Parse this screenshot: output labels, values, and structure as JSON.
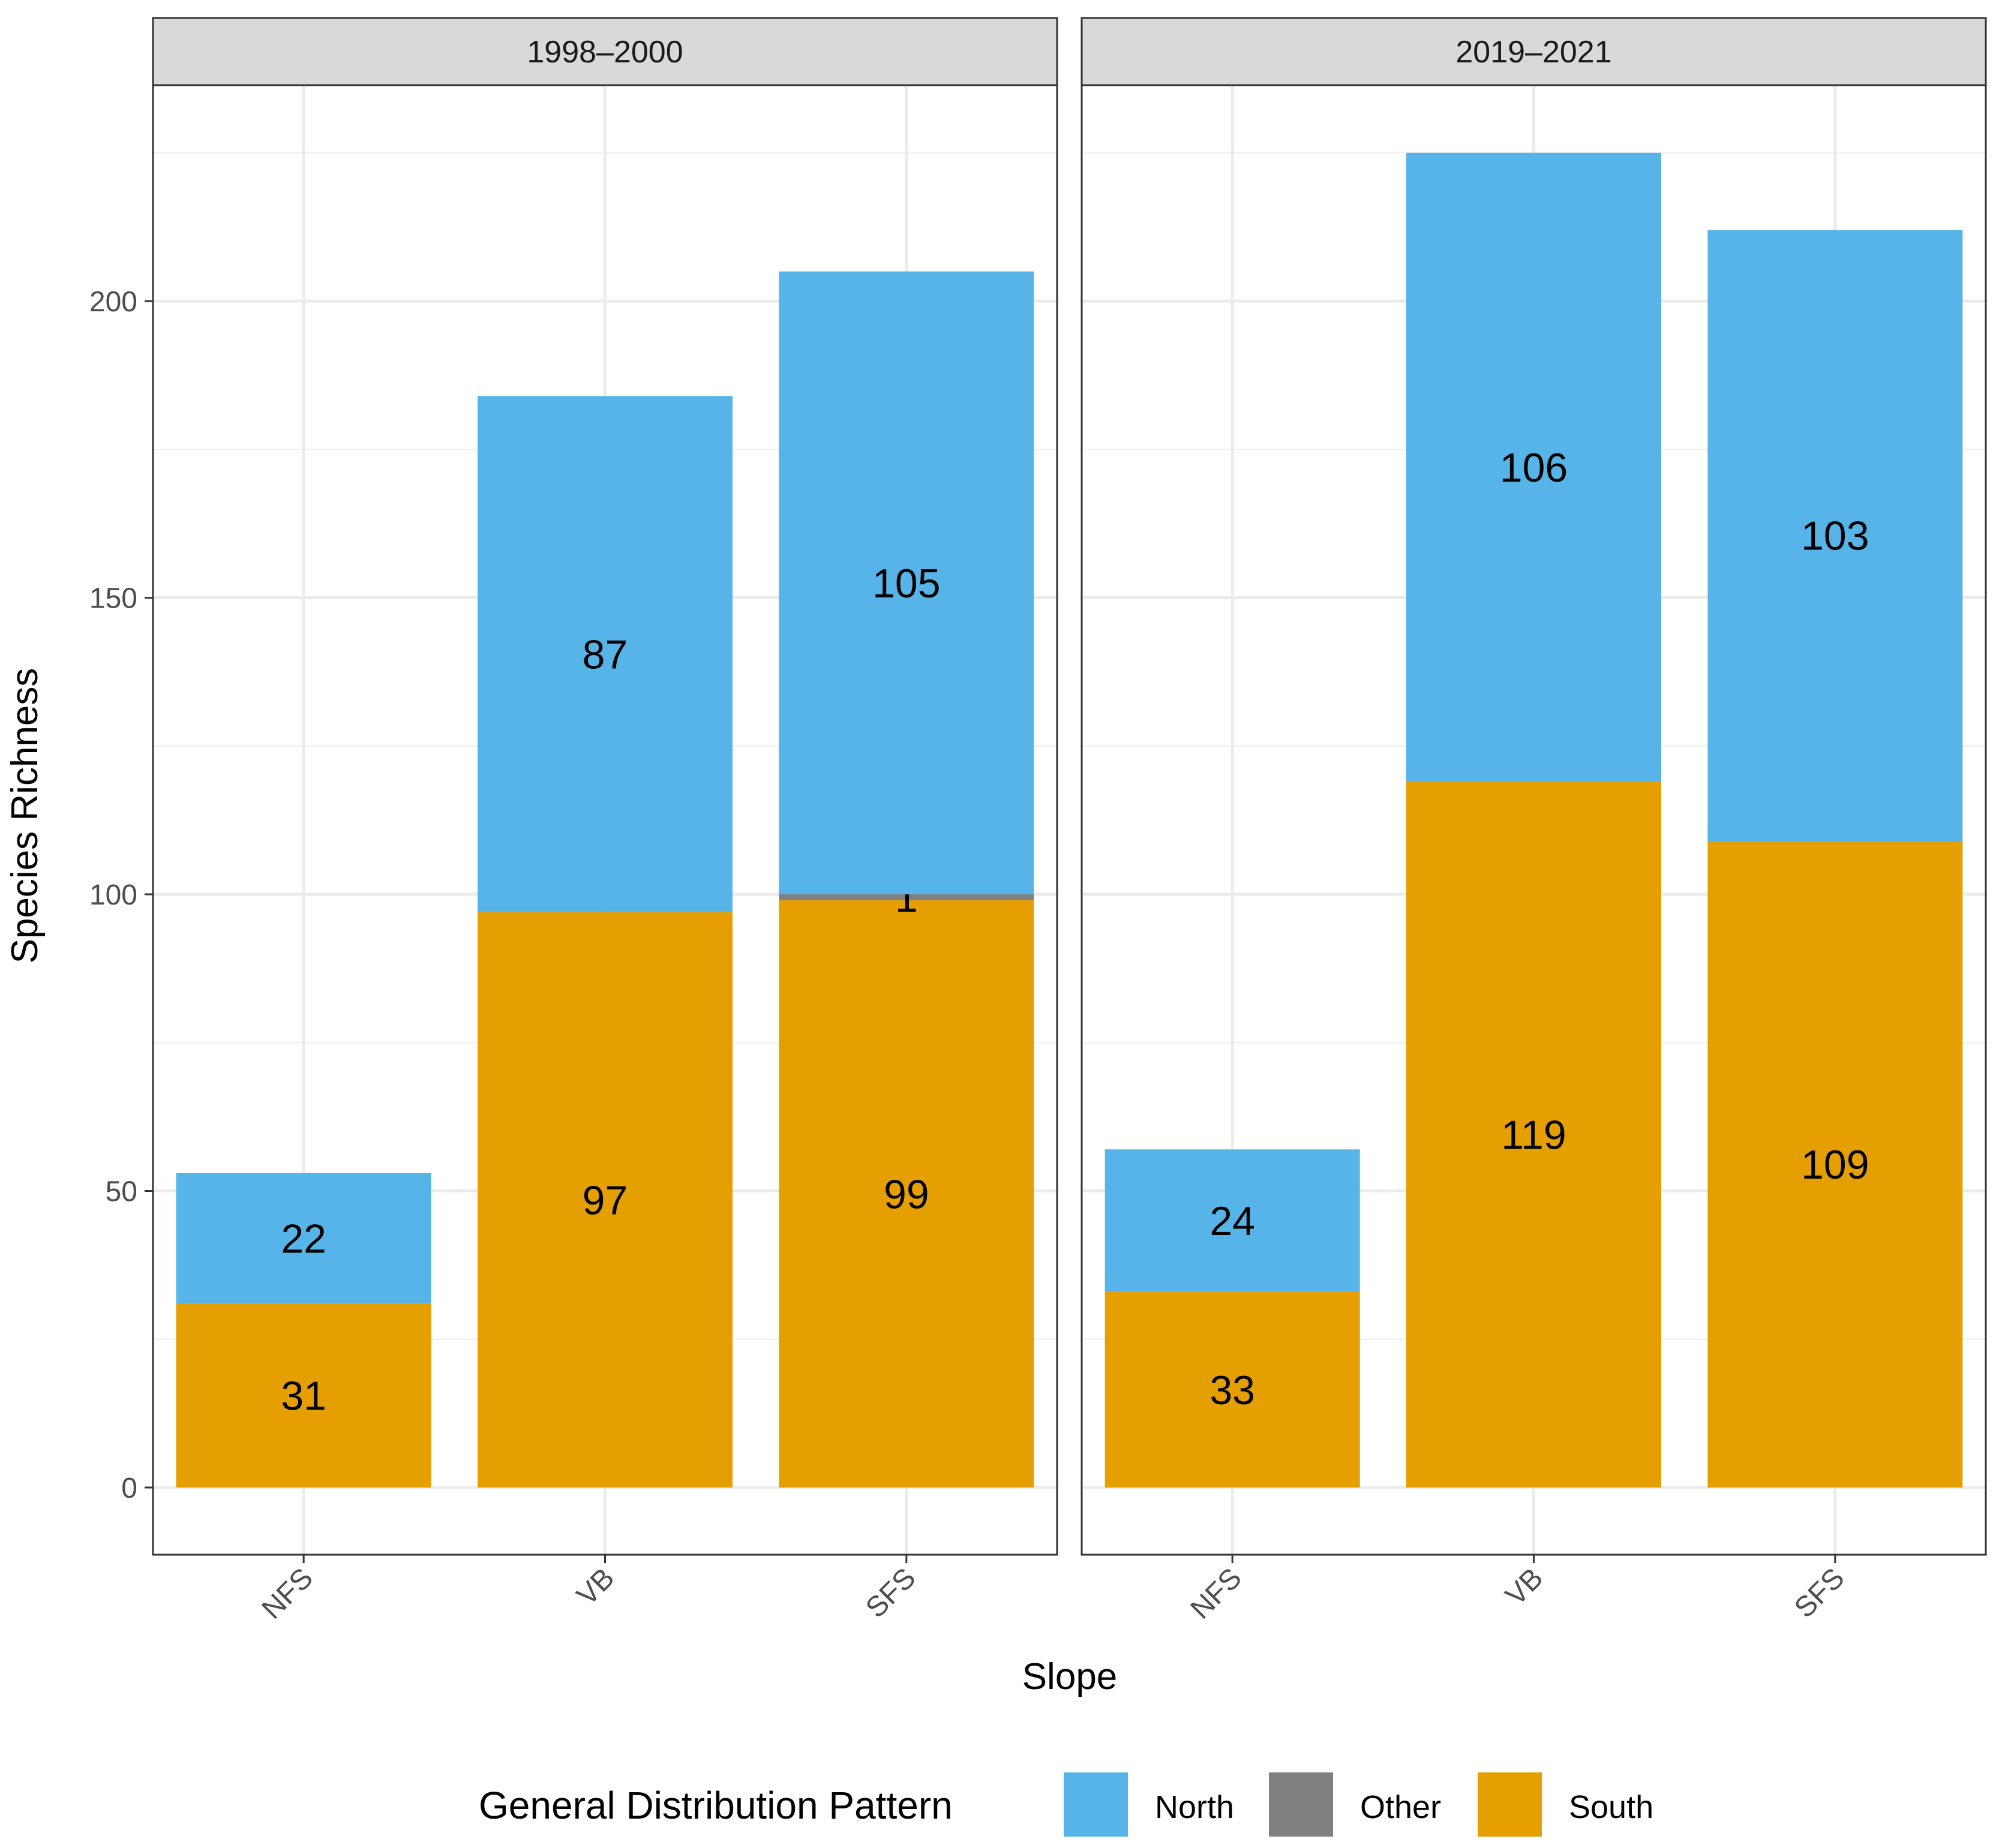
{
  "chart_data": {
    "type": "bar",
    "stacked": true,
    "ylabel": "Species Richness",
    "xlabel": "Slope",
    "ylim": [
      -11,
      248
    ],
    "yticks": [
      0,
      50,
      100,
      150,
      200
    ],
    "grid": true,
    "categories": [
      "NFS",
      "VB",
      "SFS"
    ],
    "panels": [
      {
        "title": "1998–2000",
        "series": [
          {
            "name": "South",
            "values": [
              31,
              97,
              99
            ]
          },
          {
            "name": "Other",
            "values": [
              0,
              0,
              1
            ]
          },
          {
            "name": "North",
            "values": [
              22,
              87,
              105
            ]
          }
        ]
      },
      {
        "title": "2019–2021",
        "series": [
          {
            "name": "South",
            "values": [
              33,
              119,
              109
            ]
          },
          {
            "name": "Other",
            "values": [
              0,
              0,
              0
            ]
          },
          {
            "name": "North",
            "values": [
              24,
              106,
              103
            ]
          }
        ]
      }
    ],
    "legend": {
      "title": "General Distribution Pattern",
      "position": "bottom",
      "items": [
        {
          "name": "North",
          "color": "#56B4E9"
        },
        {
          "name": "Other",
          "color": "#808080"
        },
        {
          "name": "South",
          "color": "#E69F00"
        }
      ]
    }
  }
}
